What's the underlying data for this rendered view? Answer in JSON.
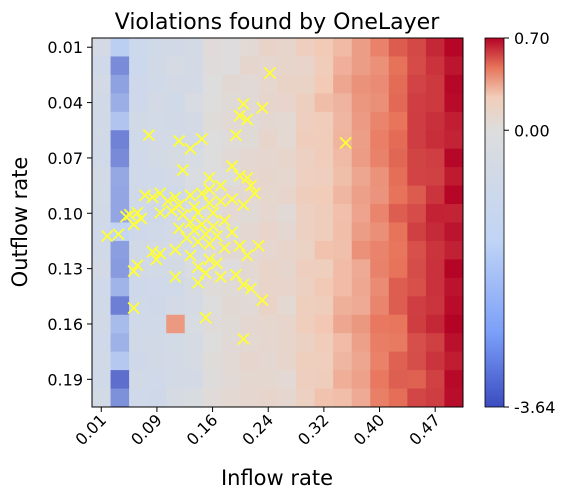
{
  "chart_data": {
    "type": "heatmap",
    "title": "Violations found by OneLayer",
    "xlabel": "Inflow rate",
    "ylabel": "Outflow rate",
    "x_tick_labels": [
      "0.01",
      "0.09",
      "0.16",
      "0.24",
      "0.32",
      "0.40",
      "0.47"
    ],
    "y_tick_labels": [
      "0.01",
      "0.04",
      "0.07",
      "0.10",
      "0.13",
      "0.16",
      "0.19"
    ],
    "x_range": [
      0.01,
      0.5
    ],
    "y_range": [
      0.01,
      0.2
    ],
    "grid_rows": 20,
    "grid_cols": 20,
    "colorbar": {
      "min": -3.64,
      "center": 0.0,
      "max": 0.7,
      "tick_labels": [
        "0.70",
        "0.00",
        "-3.64"
      ],
      "colormap": "coolwarm",
      "low_color": "#3b4cc0",
      "mid_color": "#dddddd",
      "high_color": "#b40426"
    },
    "marker": {
      "symbol": "x",
      "color": "#ffff33"
    },
    "violations": [
      [
        0.245,
        0.028
      ],
      [
        0.21,
        0.044
      ],
      [
        0.205,
        0.05
      ],
      [
        0.215,
        0.052
      ],
      [
        0.235,
        0.046
      ],
      [
        0.085,
        0.06
      ],
      [
        0.125,
        0.063
      ],
      [
        0.14,
        0.067
      ],
      [
        0.155,
        0.062
      ],
      [
        0.2,
        0.06
      ],
      [
        0.345,
        0.064
      ],
      [
        0.13,
        0.078
      ],
      [
        0.165,
        0.082
      ],
      [
        0.195,
        0.076
      ],
      [
        0.205,
        0.081
      ],
      [
        0.215,
        0.082
      ],
      [
        0.22,
        0.086
      ],
      [
        0.225,
        0.09
      ],
      [
        0.18,
        0.086
      ],
      [
        0.165,
        0.088
      ],
      [
        0.155,
        0.09
      ],
      [
        0.14,
        0.091
      ],
      [
        0.12,
        0.092
      ],
      [
        0.1,
        0.09
      ],
      [
        0.09,
        0.092
      ],
      [
        0.08,
        0.091
      ],
      [
        0.11,
        0.094
      ],
      [
        0.125,
        0.096
      ],
      [
        0.145,
        0.097
      ],
      [
        0.165,
        0.095
      ],
      [
        0.18,
        0.094
      ],
      [
        0.195,
        0.093
      ],
      [
        0.21,
        0.096
      ],
      [
        0.17,
        0.1
      ],
      [
        0.15,
        0.1
      ],
      [
        0.13,
        0.101
      ],
      [
        0.115,
        0.099
      ],
      [
        0.1,
        0.1
      ],
      [
        0.07,
        0.1
      ],
      [
        0.06,
        0.101
      ],
      [
        0.075,
        0.103
      ],
      [
        0.065,
        0.106
      ],
      [
        0.055,
        0.102
      ],
      [
        0.14,
        0.105
      ],
      [
        0.155,
        0.106
      ],
      [
        0.17,
        0.107
      ],
      [
        0.185,
        0.104
      ],
      [
        0.125,
        0.108
      ],
      [
        0.145,
        0.109
      ],
      [
        0.16,
        0.111
      ],
      [
        0.175,
        0.112
      ],
      [
        0.195,
        0.11
      ],
      [
        0.135,
        0.113
      ],
      [
        0.15,
        0.115
      ],
      [
        0.165,
        0.116
      ],
      [
        0.185,
        0.118
      ],
      [
        0.03,
        0.112
      ],
      [
        0.045,
        0.111
      ],
      [
        0.205,
        0.117
      ],
      [
        0.23,
        0.117
      ],
      [
        0.215,
        0.122
      ],
      [
        0.09,
        0.12
      ],
      [
        0.1,
        0.121
      ],
      [
        0.12,
        0.119
      ],
      [
        0.095,
        0.124
      ],
      [
        0.14,
        0.122
      ],
      [
        0.165,
        0.124
      ],
      [
        0.175,
        0.126
      ],
      [
        0.15,
        0.128
      ],
      [
        0.07,
        0.127
      ],
      [
        0.065,
        0.13
      ],
      [
        0.12,
        0.133
      ],
      [
        0.16,
        0.131
      ],
      [
        0.18,
        0.133
      ],
      [
        0.2,
        0.132
      ],
      [
        0.21,
        0.137
      ],
      [
        0.22,
        0.139
      ],
      [
        0.15,
        0.136
      ],
      [
        0.235,
        0.145
      ],
      [
        0.065,
        0.149
      ],
      [
        0.16,
        0.154
      ],
      [
        0.21,
        0.165
      ]
    ]
  }
}
